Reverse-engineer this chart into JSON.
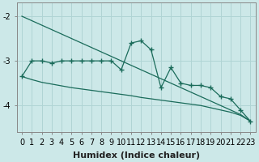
{
  "xlabel": "Humidex (Indice chaleur)",
  "bg_color": "#cce8e8",
  "grid_color": "#b0d4d4",
  "line_color": "#1a6b5a",
  "x": [
    0,
    1,
    2,
    3,
    4,
    5,
    6,
    7,
    8,
    9,
    10,
    11,
    12,
    13,
    14,
    15,
    16,
    17,
    18,
    19,
    20,
    21,
    22,
    23
  ],
  "y_main": [
    -3.35,
    -3.0,
    -3.0,
    -3.05,
    -3.0,
    -3.0,
    -3.0,
    -3.0,
    -3.0,
    -3.0,
    -3.2,
    -2.6,
    -2.55,
    -2.75,
    -3.6,
    -3.15,
    -3.5,
    -3.55,
    -3.55,
    -3.6,
    -3.8,
    -3.85,
    -4.1,
    -4.35
  ],
  "y_trend_upper": [
    -2.0,
    -2.1,
    -2.2,
    -2.3,
    -2.4,
    -2.5,
    -2.6,
    -2.7,
    -2.8,
    -2.9,
    -3.0,
    -3.1,
    -3.2,
    -3.3,
    -3.4,
    -3.5,
    -3.6,
    -3.7,
    -3.8,
    -3.9,
    -4.0,
    -4.1,
    -4.2,
    -4.35
  ],
  "y_trend_lower": [
    -3.35,
    -3.42,
    -3.48,
    -3.52,
    -3.56,
    -3.6,
    -3.63,
    -3.66,
    -3.69,
    -3.72,
    -3.75,
    -3.78,
    -3.82,
    -3.85,
    -3.88,
    -3.91,
    -3.94,
    -3.97,
    -4.0,
    -4.05,
    -4.1,
    -4.15,
    -4.22,
    -4.35
  ],
  "ylim": [
    -4.6,
    -1.7
  ],
  "yticks": [
    -4,
    -3,
    -2
  ],
  "xlim": [
    -0.5,
    23.5
  ]
}
